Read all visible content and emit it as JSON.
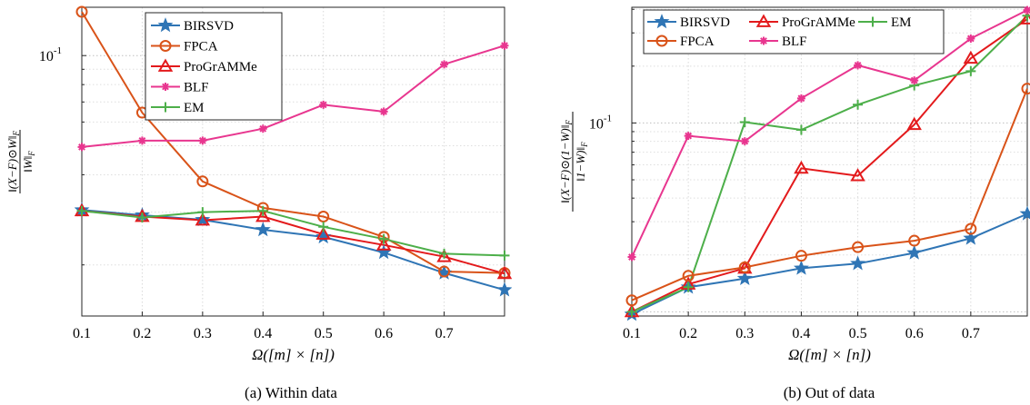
{
  "chart_data": [
    {
      "type": "line",
      "caption": "(a) Within data",
      "xlabel": "Ω([m] × [n])",
      "ylabel": "‖(X−F)⊙W‖_F / ‖W‖_F",
      "ylabel_num": "‖(X−F)⊙W‖",
      "ylabel_den": "‖W‖",
      "ylabel_sub": "F",
      "yscale": "log",
      "ylim": [
        0.0135,
        0.145
      ],
      "xlim": [
        0.1,
        0.8
      ],
      "x_ticks": [
        "0.1",
        "0.2",
        "0.3",
        "0.4",
        "0.5",
        "0.6",
        "0.7"
      ],
      "x_tick_values": [
        0.1,
        0.2,
        0.3,
        0.4,
        0.5,
        0.6,
        0.7
      ],
      "y_ticks": [
        {
          "value": 0.1,
          "base": "10",
          "exp": "-1"
        }
      ],
      "grid": true,
      "legend_position": "top",
      "x": [
        0.1,
        0.2,
        0.3,
        0.4,
        0.5,
        0.6,
        0.7,
        0.8
      ],
      "series": [
        {
          "name": "BIRSVD",
          "color": "#2f75b5",
          "marker": "star",
          "values": [
            0.0305,
            0.0293,
            0.0283,
            0.0262,
            0.0248,
            0.022,
            0.0188,
            0.0165
          ]
        },
        {
          "name": "FPCA",
          "color": "#d95319",
          "marker": "circle",
          "values": [
            0.14,
            0.0645,
            0.038,
            0.031,
            0.029,
            0.0248,
            0.019,
            0.0188
          ]
        },
        {
          "name": "ProGrAMMe",
          "color": "#e31a1c",
          "marker": "triangle",
          "values": [
            0.0303,
            0.029,
            0.0282,
            0.029,
            0.0253,
            0.0233,
            0.0213,
            0.0187
          ]
        },
        {
          "name": "BLF",
          "color": "#e8368f",
          "marker": "asterisk",
          "values": [
            0.0495,
            0.052,
            0.052,
            0.057,
            0.0685,
            0.065,
            0.0935,
            0.108
          ]
        },
        {
          "name": "EM",
          "color": "#4daf4a",
          "marker": "plus",
          "values": [
            0.0303,
            0.0288,
            0.03,
            0.0303,
            0.0268,
            0.0244,
            0.0218,
            0.0215
          ]
        }
      ]
    },
    {
      "type": "line",
      "caption": "(b) Out of data",
      "xlabel": "Ω([m] × [n])",
      "ylabel": "‖(X−F)⊙(1−W)‖_F / ‖1−W‖_F",
      "ylabel_num": "‖(X−F)⊙(1−W)‖",
      "ylabel_den": "‖1−W)‖",
      "ylabel_sub": "F",
      "yscale": "log",
      "ylim": [
        0.0095,
        0.41
      ],
      "xlim": [
        0.1,
        0.8
      ],
      "x_ticks": [
        "0.1",
        "0.2",
        "0.3",
        "0.4",
        "0.5",
        "0.6",
        "0.7"
      ],
      "x_tick_values": [
        0.1,
        0.2,
        0.3,
        0.4,
        0.5,
        0.6,
        0.7
      ],
      "y_ticks": [
        {
          "value": 0.1,
          "base": "10",
          "exp": "-1"
        }
      ],
      "grid": true,
      "legend_position": "top",
      "x": [
        0.1,
        0.2,
        0.3,
        0.4,
        0.5,
        0.6,
        0.7,
        0.8
      ],
      "series": [
        {
          "name": "BIRSVD",
          "color": "#2f75b5",
          "marker": "star",
          "values": [
            0.0097,
            0.0135,
            0.015,
            0.017,
            0.018,
            0.0205,
            0.0245,
            0.033
          ]
        },
        {
          "name": "ProGrAMMe",
          "color": "#e31a1c",
          "marker": "triangle",
          "values": [
            0.01,
            0.014,
            0.017,
            0.0575,
            0.0525,
            0.098,
            0.22,
            0.355
          ]
        },
        {
          "name": "EM",
          "color": "#4daf4a",
          "marker": "plus",
          "values": [
            0.01,
            0.0135,
            0.101,
            0.092,
            0.125,
            0.158,
            0.188,
            0.37
          ]
        },
        {
          "name": "FPCA",
          "color": "#d95319",
          "marker": "circle",
          "values": [
            0.0115,
            0.0155,
            0.0172,
            0.0198,
            0.022,
            0.0238,
            0.0275,
            0.152
          ]
        },
        {
          "name": "BLF",
          "color": "#e8368f",
          "marker": "asterisk",
          "values": [
            0.0195,
            0.0855,
            0.08,
            0.135,
            0.202,
            0.168,
            0.28,
            0.396
          ]
        }
      ]
    }
  ]
}
